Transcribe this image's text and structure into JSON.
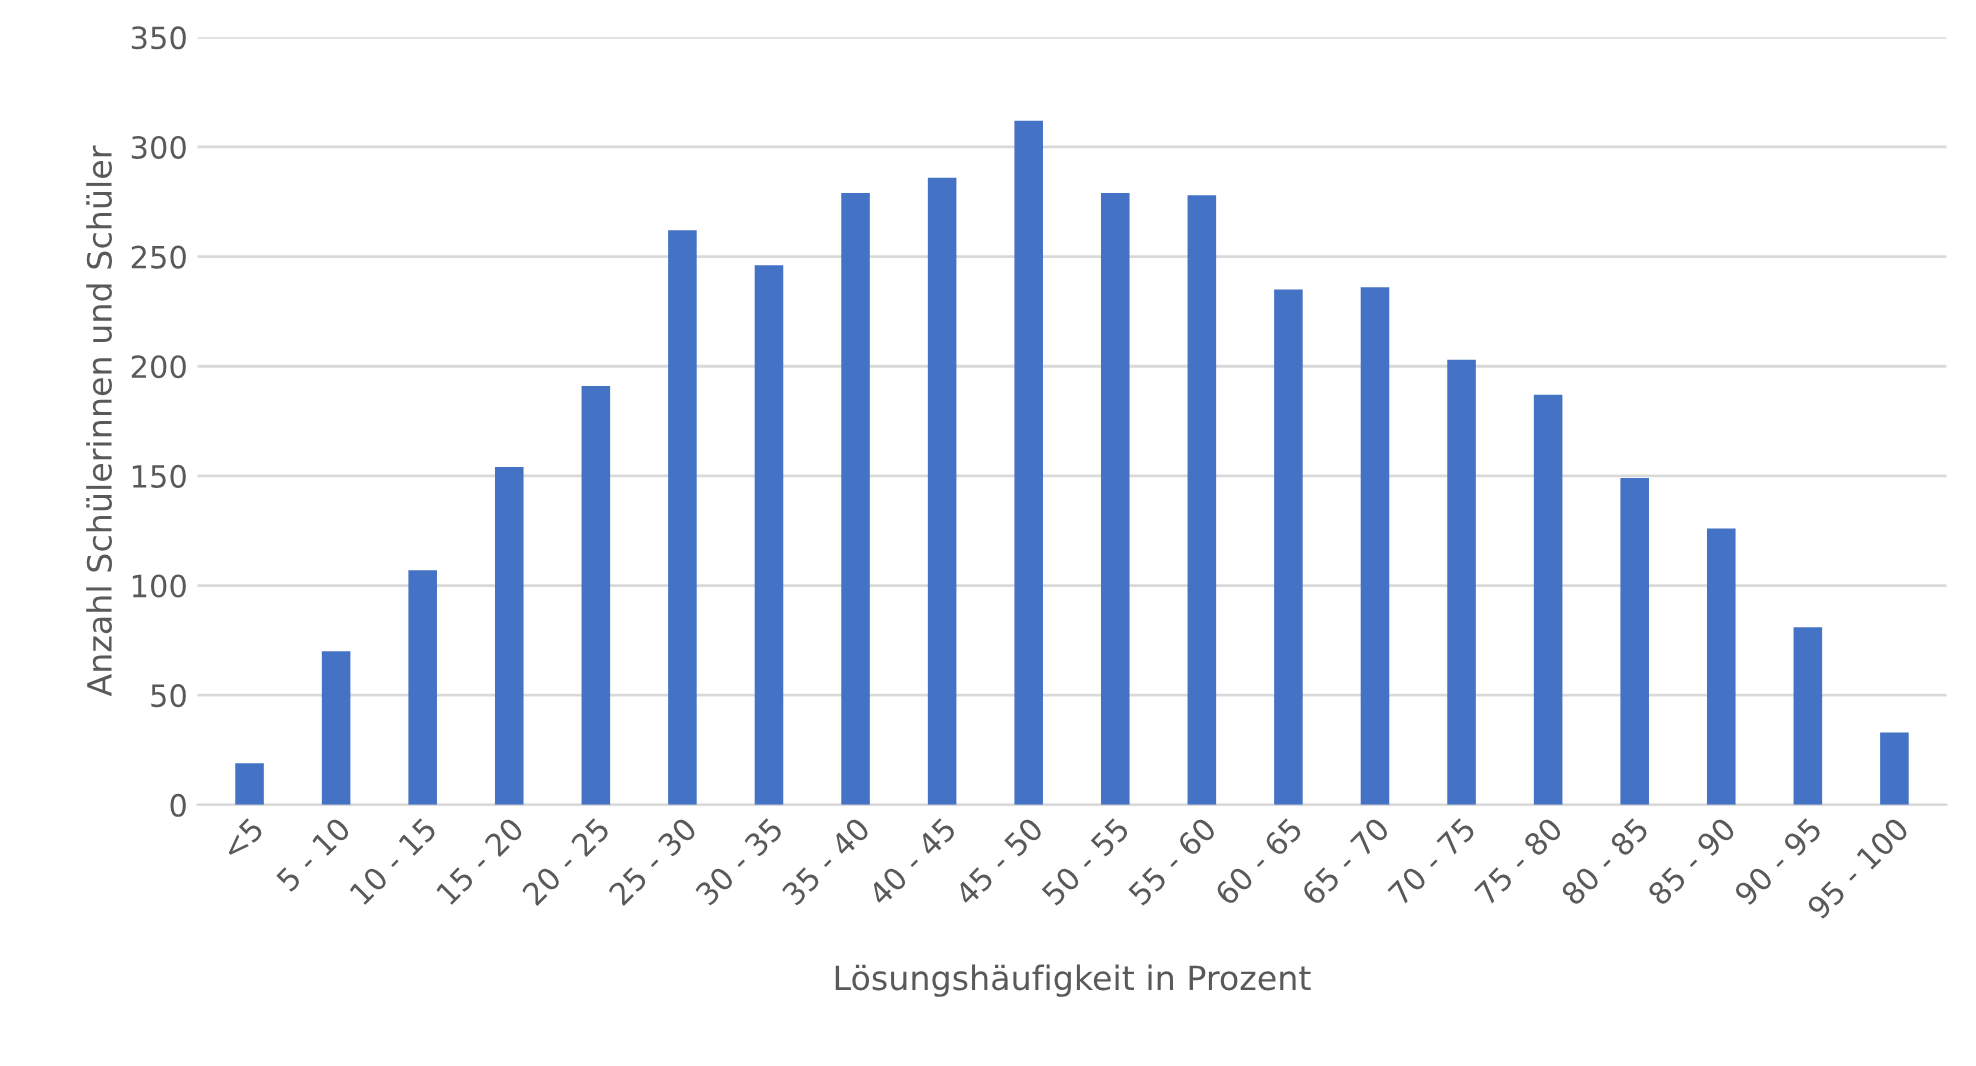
{
  "chart_data": {
    "type": "bar",
    "xlabel": "Lösungshäufigkeit in Prozent",
    "ylabel": "Anzahl Schülerinnen und Schüler",
    "categories": [
      "<5",
      "5 - 10",
      "10 - 15",
      "15 - 20",
      "20 - 25",
      "25 - 30",
      "30 - 35",
      "35 - 40",
      "40 - 45",
      "45 - 50",
      "50 - 55",
      "55 - 60",
      "60 - 65",
      "65 - 70",
      "70 - 75",
      "75 - 80",
      "80 - 85",
      "85 - 90",
      "90 - 95",
      "95 - 100"
    ],
    "values": [
      19,
      70,
      107,
      154,
      191,
      262,
      246,
      279,
      286,
      312,
      279,
      278,
      235,
      236,
      203,
      187,
      149,
      126,
      81,
      33
    ],
    "color": "#4472c4",
    "ylim": [
      0,
      350
    ],
    "yticks": [
      0,
      50,
      100,
      150,
      200,
      250,
      300,
      350
    ],
    "grid": "y",
    "legend": false
  }
}
